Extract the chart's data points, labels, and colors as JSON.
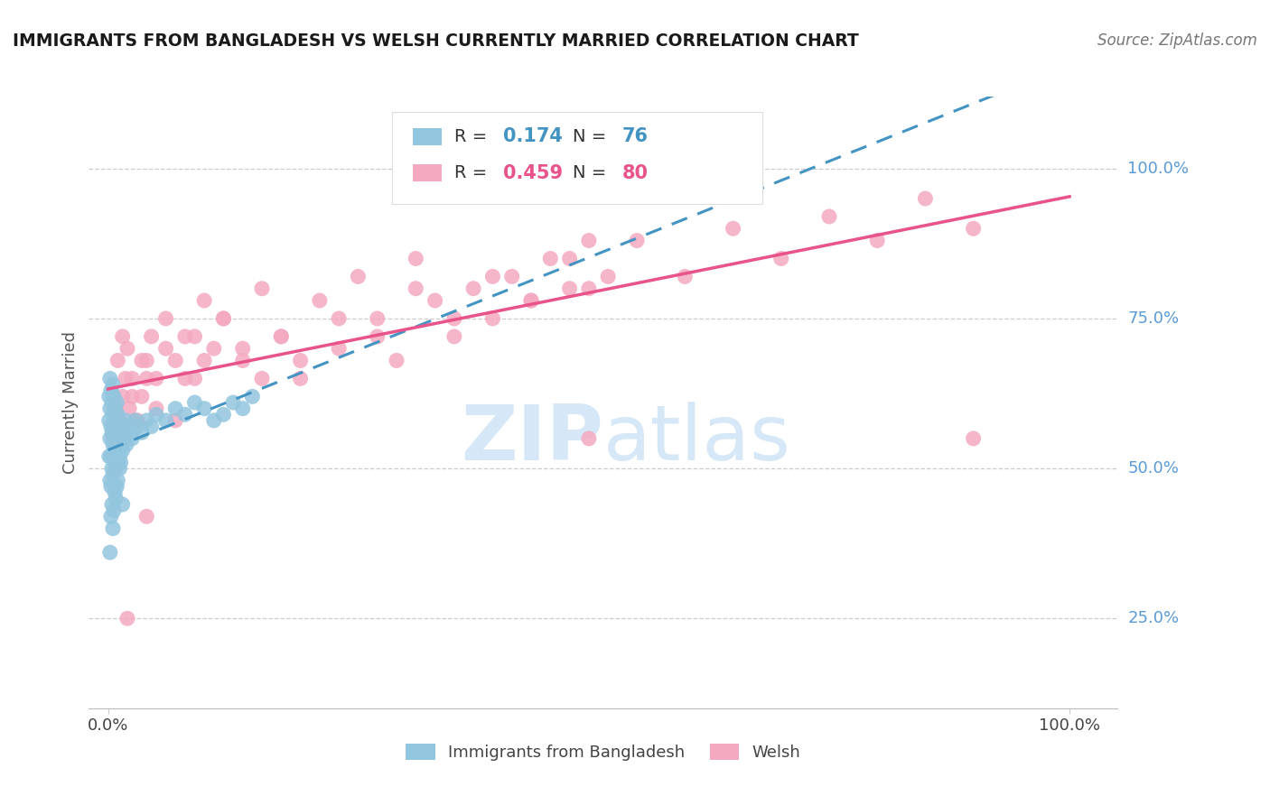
{
  "title": "IMMIGRANTS FROM BANGLADESH VS WELSH CURRENTLY MARRIED CORRELATION CHART",
  "source": "Source: ZipAtlas.com",
  "ylabel": "Currently Married",
  "legend_label1": "Immigrants from Bangladesh",
  "legend_label2": "Welsh",
  "R1": 0.174,
  "N1": 76,
  "R2": 0.459,
  "N2": 80,
  "blue_color": "#92c5de",
  "pink_color": "#f4a9c0",
  "blue_line_color": "#4393c3",
  "pink_line_color": "#e8538a",
  "watermark_color": "#d6e8f7",
  "grid_color": "#cccccc",
  "ytick_color": "#5b9bd5",
  "title_color": "#1a1a1a",
  "source_color": "#777777",
  "ylim_min": 0.1,
  "ylim_max": 1.12,
  "xlim_min": -0.02,
  "xlim_max": 1.05,
  "blue_x": [
    0.001,
    0.001,
    0.001,
    0.002,
    0.002,
    0.002,
    0.002,
    0.003,
    0.003,
    0.003,
    0.003,
    0.004,
    0.004,
    0.004,
    0.005,
    0.005,
    0.005,
    0.005,
    0.006,
    0.006,
    0.006,
    0.007,
    0.007,
    0.007,
    0.007,
    0.008,
    0.008,
    0.008,
    0.009,
    0.009,
    0.01,
    0.01,
    0.01,
    0.011,
    0.011,
    0.012,
    0.012,
    0.013,
    0.013,
    0.014,
    0.015,
    0.015,
    0.016,
    0.017,
    0.018,
    0.019,
    0.02,
    0.022,
    0.025,
    0.028,
    0.03,
    0.035,
    0.04,
    0.045,
    0.05,
    0.06,
    0.07,
    0.08,
    0.09,
    0.1,
    0.11,
    0.12,
    0.13,
    0.14,
    0.15,
    0.002,
    0.003,
    0.004,
    0.005,
    0.006,
    0.007,
    0.008,
    0.009,
    0.01,
    0.012,
    0.015
  ],
  "blue_y": [
    0.62,
    0.58,
    0.52,
    0.65,
    0.6,
    0.55,
    0.48,
    0.63,
    0.57,
    0.52,
    0.47,
    0.61,
    0.56,
    0.5,
    0.64,
    0.59,
    0.54,
    0.49,
    0.62,
    0.57,
    0.53,
    0.6,
    0.56,
    0.51,
    0.47,
    0.58,
    0.54,
    0.5,
    0.61,
    0.56,
    0.59,
    0.55,
    0.51,
    0.57,
    0.53,
    0.56,
    0.52,
    0.55,
    0.51,
    0.54,
    0.57,
    0.53,
    0.56,
    0.55,
    0.58,
    0.54,
    0.56,
    0.57,
    0.55,
    0.58,
    0.57,
    0.56,
    0.58,
    0.57,
    0.59,
    0.58,
    0.6,
    0.59,
    0.61,
    0.6,
    0.58,
    0.59,
    0.61,
    0.6,
    0.62,
    0.36,
    0.42,
    0.44,
    0.4,
    0.43,
    0.46,
    0.45,
    0.47,
    0.48,
    0.5,
    0.44
  ],
  "pink_x": [
    0.005,
    0.008,
    0.01,
    0.012,
    0.015,
    0.018,
    0.02,
    0.025,
    0.03,
    0.035,
    0.04,
    0.045,
    0.05,
    0.06,
    0.07,
    0.08,
    0.09,
    0.1,
    0.11,
    0.12,
    0.14,
    0.16,
    0.18,
    0.2,
    0.22,
    0.24,
    0.26,
    0.28,
    0.3,
    0.32,
    0.34,
    0.36,
    0.38,
    0.4,
    0.42,
    0.44,
    0.46,
    0.48,
    0.5,
    0.52,
    0.008,
    0.012,
    0.015,
    0.018,
    0.022,
    0.025,
    0.03,
    0.035,
    0.04,
    0.05,
    0.06,
    0.07,
    0.08,
    0.09,
    0.1,
    0.12,
    0.14,
    0.16,
    0.18,
    0.2,
    0.24,
    0.28,
    0.32,
    0.36,
    0.4,
    0.44,
    0.48,
    0.5,
    0.55,
    0.6,
    0.65,
    0.7,
    0.75,
    0.8,
    0.85,
    0.9,
    0.02,
    0.04,
    0.9,
    0.5
  ],
  "pink_y": [
    0.55,
    0.6,
    0.68,
    0.58,
    0.72,
    0.65,
    0.7,
    0.62,
    0.58,
    0.68,
    0.65,
    0.72,
    0.6,
    0.75,
    0.68,
    0.72,
    0.65,
    0.78,
    0.7,
    0.75,
    0.68,
    0.8,
    0.72,
    0.65,
    0.78,
    0.7,
    0.82,
    0.75,
    0.68,
    0.85,
    0.78,
    0.72,
    0.8,
    0.75,
    0.82,
    0.78,
    0.85,
    0.8,
    0.88,
    0.82,
    0.5,
    0.58,
    0.62,
    0.55,
    0.6,
    0.65,
    0.58,
    0.62,
    0.68,
    0.65,
    0.7,
    0.58,
    0.65,
    0.72,
    0.68,
    0.75,
    0.7,
    0.65,
    0.72,
    0.68,
    0.75,
    0.72,
    0.8,
    0.75,
    0.82,
    0.78,
    0.85,
    0.8,
    0.88,
    0.82,
    0.9,
    0.85,
    0.92,
    0.88,
    0.95,
    0.9,
    0.25,
    0.42,
    0.55,
    0.55
  ],
  "yticks": [
    0.25,
    0.5,
    0.75,
    1.0
  ],
  "ytick_labels": [
    "25.0%",
    "50.0%",
    "75.0%",
    "100.0%"
  ]
}
